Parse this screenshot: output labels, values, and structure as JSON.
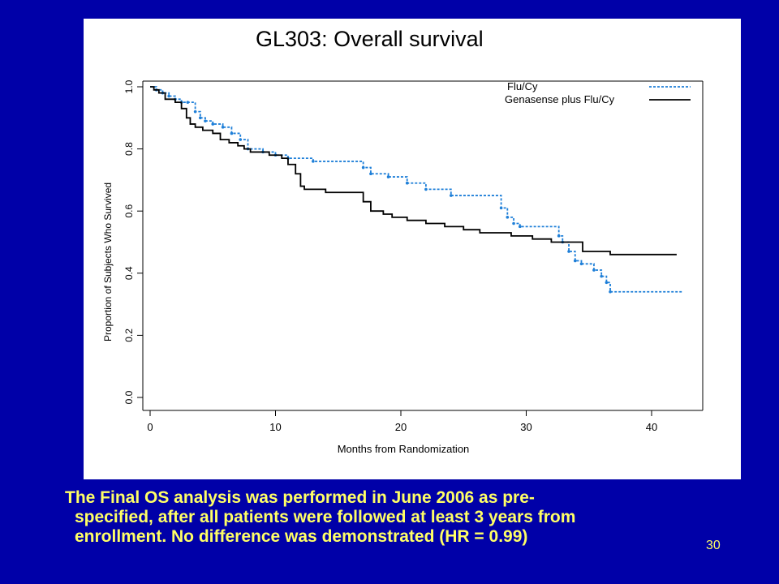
{
  "slide": {
    "caption_lines": [
      "The Final OS analysis was performed in June 2006 as pre-",
      "specified, after all patients were followed at least 3 years from",
      "enrollment. No difference was demonstrated (HR = 0.99)"
    ],
    "page_number": "30",
    "background_color": "#0000A8",
    "caption_color": "#FFFF66"
  },
  "chart_data": {
    "type": "line",
    "subtype": "kaplan-meier step",
    "title": "GL303: Overall survival",
    "xlabel": "Months from Randomization",
    "ylabel": "Proportion of Subjects Who Survived",
    "xlim": [
      0,
      44
    ],
    "ylim": [
      0,
      1.0
    ],
    "xticks": [
      0,
      10,
      20,
      30,
      40
    ],
    "yticks": [
      0.0,
      0.2,
      0.4,
      0.6,
      0.8,
      1.0
    ],
    "ytick_labels": [
      "0.0",
      "0.2",
      "0.4",
      "0.6",
      "0.8",
      "1.0"
    ],
    "grid": false,
    "legend_position": "top-right",
    "series": [
      {
        "name": "Flu/Cy",
        "color": "#1E7FD8",
        "style": "dotted-step",
        "x": [
          0,
          0.5,
          1,
          1.5,
          2,
          2.5,
          3,
          3.6,
          4,
          4.4,
          5,
          5.8,
          6.5,
          7.2,
          7.8,
          9,
          10,
          11,
          13,
          17,
          17.6,
          19,
          20.5,
          22,
          24,
          28,
          28.5,
          29,
          29.5,
          32.6,
          32.9,
          33.4,
          33.9,
          34.4,
          35.4,
          36,
          36.4,
          36.7,
          42.5
        ],
        "y": [
          1.0,
          0.99,
          0.98,
          0.97,
          0.96,
          0.95,
          0.95,
          0.92,
          0.9,
          0.89,
          0.88,
          0.87,
          0.85,
          0.83,
          0.8,
          0.79,
          0.78,
          0.77,
          0.76,
          0.74,
          0.72,
          0.71,
          0.69,
          0.67,
          0.65,
          0.61,
          0.58,
          0.56,
          0.55,
          0.52,
          0.5,
          0.47,
          0.44,
          0.43,
          0.41,
          0.39,
          0.37,
          0.34,
          0.34
        ]
      },
      {
        "name": "Genasense plus Flu/Cy",
        "color": "#000000",
        "style": "solid-step",
        "x": [
          0,
          0.3,
          0.7,
          1.2,
          2,
          2.5,
          2.9,
          3.2,
          3.6,
          4.2,
          5,
          5.6,
          6.3,
          7,
          7.5,
          8,
          9.5,
          10.5,
          11,
          11.6,
          12,
          12.3,
          14,
          17,
          17.6,
          18.6,
          19.3,
          20.5,
          22,
          23.5,
          25,
          26.3,
          28.8,
          30.5,
          32,
          33.8,
          34.5,
          36.7,
          42
        ],
        "y": [
          1.0,
          0.99,
          0.98,
          0.96,
          0.95,
          0.93,
          0.9,
          0.88,
          0.87,
          0.86,
          0.85,
          0.83,
          0.82,
          0.81,
          0.8,
          0.79,
          0.78,
          0.77,
          0.75,
          0.72,
          0.68,
          0.67,
          0.66,
          0.63,
          0.6,
          0.59,
          0.58,
          0.57,
          0.56,
          0.55,
          0.54,
          0.53,
          0.52,
          0.51,
          0.5,
          0.5,
          0.47,
          0.46,
          0.46
        ]
      }
    ]
  }
}
